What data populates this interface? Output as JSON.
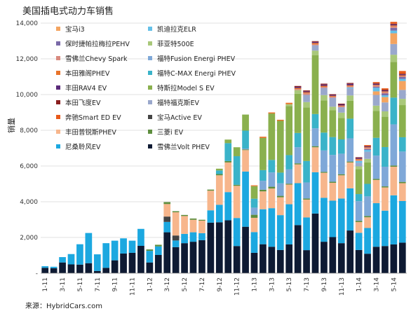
{
  "chart_data": {
    "type": "bar",
    "stacked": true,
    "title": "美国插电式动力车销售",
    "ylabel": "销量",
    "xlabel": "",
    "ylim": [
      0,
      14000
    ],
    "yticks": [
      0,
      2000,
      4000,
      6000,
      8000,
      10000,
      12000,
      14000
    ],
    "ytick_labels": [
      "-",
      "2,000",
      "4,000",
      "6,000",
      "8,000",
      "10,000",
      "12,000",
      "14,000"
    ],
    "grid": true,
    "legend_position": "top-left",
    "source": "来源：HybridCars.com",
    "x_tick_labels": [
      "1-11",
      "3-11",
      "5-11",
      "7-11",
      "9-11",
      "11-11",
      "1-12",
      "3-12",
      "5-12",
      "7-12",
      "9-12",
      "11-12",
      "1-13",
      "3-13",
      "5-13",
      "7-13",
      "9-13",
      "11-13",
      "1-14",
      "3-14",
      "5-14"
    ],
    "categories": [
      "1-11",
      "2-11",
      "3-11",
      "4-11",
      "5-11",
      "6-11",
      "7-11",
      "8-11",
      "9-11",
      "10-11",
      "11-11",
      "12-11",
      "1-12",
      "2-12",
      "3-12",
      "4-12",
      "5-12",
      "6-12",
      "7-12",
      "8-12",
      "9-12",
      "10-12",
      "11-12",
      "12-12",
      "1-13",
      "2-13",
      "3-13",
      "4-13",
      "5-13",
      "6-13",
      "7-13",
      "8-13",
      "9-13",
      "10-13",
      "11-13",
      "12-13",
      "1-14",
      "2-14",
      "3-14",
      "4-14",
      "5-14",
      "6-14"
    ],
    "series": [
      {
        "name": "雪佛兰Volt PHEV",
        "color": "#0e1a33",
        "values": [
          300,
          280,
          600,
          490,
          480,
          560,
          125,
          300,
          720,
          1100,
          1140,
          1530,
          600,
          1020,
          2290,
          1460,
          1680,
          1760,
          1850,
          2830,
          2850,
          2960,
          1520,
          2600,
          1140,
          1620,
          1480,
          1300,
          1610,
          2690,
          1290,
          3340,
          1760,
          2020,
          1680,
          2390,
          1300,
          1090,
          1480,
          1520,
          1610,
          1710
        ]
      },
      {
        "name": "尼桑聆风EV",
        "color": "#1ca8e0",
        "values": [
          90,
          80,
          300,
          580,
          1140,
          1690,
          930,
          1380,
          1100,
          850,
          680,
          950,
          650,
          480,
          580,
          370,
          520,
          530,
          390,
          690,
          980,
          1580,
          1570,
          3090,
          1160,
          1960,
          2160,
          1950,
          2250,
          2350,
          1830,
          2310,
          2460,
          2040,
          2500,
          2360,
          960,
          1440,
          2440,
          1980,
          2750,
          2330
        ]
      },
      {
        "name": "宝马Active EV",
        "color": "#444444",
        "values": [
          0,
          0,
          0,
          0,
          0,
          0,
          0,
          0,
          0,
          0,
          0,
          0,
          0,
          0,
          300,
          280,
          0,
          0,
          0,
          0,
          0,
          0,
          0,
          0,
          0,
          0,
          0,
          0,
          0,
          0,
          0,
          0,
          0,
          0,
          0,
          0,
          0,
          0,
          0,
          0,
          0,
          0
        ]
      },
      {
        "name": "丰田普锐斯PHEV",
        "color": "#f7b68c",
        "values": [
          0,
          0,
          0,
          0,
          0,
          0,
          0,
          0,
          0,
          0,
          0,
          0,
          0,
          0,
          700,
          1300,
          1000,
          700,
          700,
          1100,
          1650,
          1660,
          1800,
          1200,
          800,
          1000,
          1100,
          1000,
          1100,
          1050,
          1000,
          1400,
          1400,
          1000,
          1300,
          1450,
          600,
          600,
          1300,
          1300,
          1600,
          1000
        ]
      },
      {
        "name": "三菱i EV",
        "color": "#5e8e3e",
        "values": [
          0,
          0,
          0,
          0,
          0,
          0,
          0,
          0,
          0,
          0,
          0,
          0,
          80,
          90,
          110,
          60,
          60,
          70,
          50,
          60,
          70,
          80,
          60,
          40,
          170,
          90,
          100,
          80,
          50,
          60,
          60,
          60,
          50,
          60,
          60,
          50,
          70,
          70,
          60,
          60,
          70,
          70
        ]
      },
      {
        "name": "福特Fusion Energi PHEV",
        "color": "#7fa8d8",
        "values": [
          0,
          0,
          0,
          0,
          0,
          0,
          0,
          0,
          0,
          0,
          0,
          0,
          0,
          0,
          0,
          0,
          0,
          0,
          0,
          0,
          0,
          0,
          0,
          50,
          400,
          500,
          800,
          700,
          800,
          900,
          900,
          1000,
          1200,
          1500,
          1150,
          1300,
          1100,
          1100,
          1300,
          1100,
          2300,
          1700
        ]
      },
      {
        "name": "福特C-MAX Energi PHEV",
        "color": "#3ab3c9",
        "values": [
          0,
          0,
          0,
          0,
          0,
          0,
          0,
          0,
          0,
          0,
          0,
          0,
          0,
          0,
          0,
          0,
          0,
          0,
          0,
          0,
          200,
          1000,
          1600,
          1000,
          500,
          600,
          700,
          600,
          800,
          800,
          1200,
          800,
          1000,
          1000,
          800,
          1100,
          400,
          700,
          1000,
          1100,
          1500,
          800
        ]
      },
      {
        "name": "特斯拉Model S EV",
        "color": "#8ab04e",
        "values": [
          0,
          0,
          0,
          0,
          0,
          0,
          0,
          0,
          0,
          0,
          0,
          0,
          0,
          0,
          0,
          0,
          0,
          0,
          0,
          0,
          100,
          200,
          500,
          900,
          700,
          1800,
          2600,
          2900,
          2750,
          2200,
          3000,
          3300,
          1800,
          1500,
          1200,
          1000,
          1400,
          1200,
          1500,
          1700,
          2000,
          1800
        ]
      },
      {
        "name": "菲亚特500E",
        "color": "#a9c87a",
        "values": [
          0,
          0,
          0,
          0,
          0,
          0,
          0,
          0,
          0,
          0,
          0,
          0,
          0,
          0,
          0,
          0,
          0,
          0,
          0,
          0,
          0,
          0,
          0,
          0,
          0,
          0,
          0,
          0,
          100,
          200,
          300,
          250,
          300,
          200,
          300,
          300,
          150,
          200,
          300,
          300,
          400,
          350
        ]
      },
      {
        "name": "福特福克斯EV",
        "color": "#9aa8cc",
        "values": [
          0,
          0,
          0,
          0,
          0,
          0,
          0,
          0,
          0,
          0,
          0,
          0,
          0,
          0,
          0,
          0,
          0,
          0,
          0,
          0,
          0,
          0,
          0,
          0,
          0,
          0,
          0,
          0,
          0,
          0,
          400,
          300,
          400,
          500,
          300,
          400,
          200,
          400,
          600,
          500,
          600,
          500
        ]
      },
      {
        "name": "宝马i3",
        "color": "#f4a460",
        "values": [
          0,
          0,
          0,
          0,
          0,
          0,
          0,
          0,
          0,
          0,
          0,
          0,
          0,
          0,
          0,
          0,
          0,
          0,
          0,
          0,
          0,
          0,
          0,
          0,
          0,
          0,
          0,
          0,
          0,
          0,
          0,
          0,
          0,
          0,
          0,
          0,
          0,
          0,
          200,
          300,
          600,
          500
        ]
      },
      {
        "name": "凯迪拉克ELR",
        "color": "#64c0e8",
        "values": [
          0,
          0,
          0,
          0,
          0,
          0,
          0,
          0,
          0,
          0,
          0,
          0,
          0,
          0,
          0,
          0,
          0,
          0,
          0,
          0,
          0,
          0,
          0,
          0,
          0,
          0,
          0,
          0,
          0,
          0,
          0,
          0,
          0,
          0,
          0,
          50,
          100,
          100,
          200,
          100,
          150,
          120
        ]
      },
      {
        "name": "保时捷帕拉梅拉PEHV",
        "color": "#7a6aa8",
        "values": [
          0,
          0,
          0,
          0,
          0,
          0,
          0,
          0,
          0,
          0,
          0,
          0,
          0,
          0,
          0,
          0,
          0,
          0,
          0,
          0,
          0,
          0,
          0,
          0,
          0,
          0,
          0,
          0,
          0,
          0,
          0,
          0,
          0,
          0,
          0,
          0,
          0,
          50,
          50,
          100,
          150,
          100
        ]
      },
      {
        "name": "雪佛兰Chevy Spark",
        "color": "#d98a7f",
        "values": [
          0,
          0,
          0,
          0,
          0,
          0,
          0,
          0,
          0,
          0,
          0,
          0,
          0,
          0,
          0,
          0,
          0,
          0,
          0,
          0,
          0,
          0,
          0,
          0,
          0,
          0,
          0,
          0,
          0,
          60,
          90,
          50,
          60,
          60,
          60,
          60,
          60,
          60,
          70,
          70,
          80,
          60
        ]
      },
      {
        "name": "本田雅阁PHEV",
        "color": "#e8742a",
        "values": [
          0,
          0,
          0,
          0,
          0,
          0,
          0,
          0,
          0,
          0,
          0,
          0,
          0,
          0,
          0,
          0,
          0,
          0,
          0,
          0,
          0,
          0,
          0,
          0,
          50,
          70,
          60,
          60,
          80,
          60,
          60,
          80,
          60,
          50,
          40,
          60,
          60,
          40,
          40,
          50,
          60,
          40
        ]
      },
      {
        "name": "丰田RAV4 EV",
        "color": "#5a2a7a",
        "values": [
          0,
          0,
          0,
          0,
          0,
          0,
          0,
          0,
          0,
          0,
          0,
          0,
          0,
          0,
          0,
          0,
          0,
          0,
          0,
          0,
          0,
          0,
          0,
          0,
          0,
          0,
          0,
          0,
          0,
          60,
          50,
          60,
          70,
          50,
          60,
          80,
          50,
          40,
          60,
          50,
          60,
          50
        ]
      },
      {
        "name": "本田飞度EV",
        "color": "#8a1e1e",
        "values": [
          0,
          0,
          0,
          0,
          0,
          0,
          0,
          0,
          0,
          0,
          0,
          0,
          0,
          0,
          0,
          0,
          0,
          0,
          0,
          0,
          0,
          0,
          0,
          0,
          0,
          0,
          0,
          0,
          0,
          50,
          50,
          40,
          50,
          40,
          40,
          50,
          40,
          30,
          40,
          50,
          40,
          40
        ]
      },
      {
        "name": "奔驰Smart ED EV",
        "color": "#e85a1a",
        "values": [
          0,
          0,
          0,
          0,
          0,
          0,
          0,
          0,
          0,
          0,
          0,
          0,
          0,
          0,
          0,
          0,
          0,
          0,
          0,
          0,
          0,
          0,
          0,
          0,
          0,
          0,
          0,
          0,
          0,
          0,
          0,
          0,
          0,
          0,
          0,
          0,
          0,
          50,
          60,
          70,
          100,
          150
        ]
      }
    ],
    "legend": [
      [
        "宝马i3",
        "凯迪拉克ELR"
      ],
      [
        "保时捷帕拉梅拉PEHV",
        "菲亚特500E"
      ],
      [
        "雪佛兰Chevy Spark",
        "福特Fusion Energi PHEV"
      ],
      [
        "本田雅阁PHEV",
        "福特C-MAX Energi PHEV"
      ],
      [
        "丰田RAV4 EV",
        "特斯拉Model S EV"
      ],
      [
        "本田飞度EV",
        "福特福克斯EV"
      ],
      [
        "奔驰Smart ED EV",
        "宝马Active EV"
      ],
      [
        "丰田普锐斯PHEV",
        "三菱i EV"
      ],
      [
        "尼桑聆风EV",
        "雪佛兰Volt PHEV"
      ]
    ]
  }
}
